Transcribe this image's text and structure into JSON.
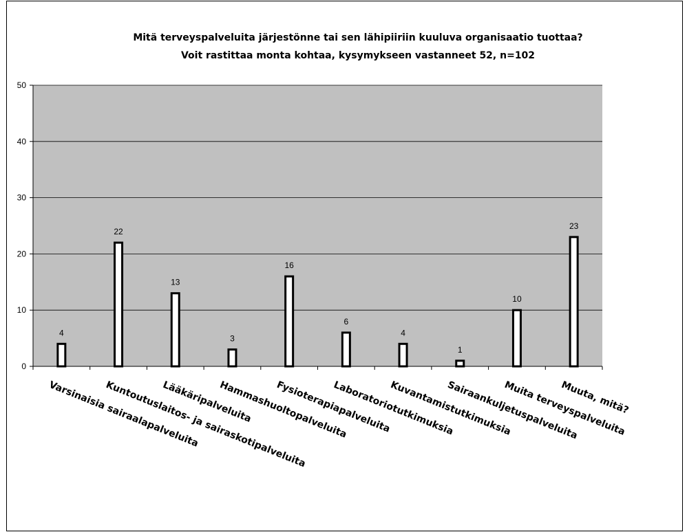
{
  "chart_data": {
    "type": "bar",
    "title": [
      "Mitä terveyspalveluita järjestönne tai sen lähipiiriin kuuluva organisaatio tuottaa?",
      "Voit rastittaa monta kohtaa, kysymykseen vastanneet 52, n=102"
    ],
    "xlabel": "",
    "ylabel": "",
    "ylim": [
      0,
      50
    ],
    "yticks": [
      0,
      10,
      20,
      30,
      40,
      50
    ],
    "grid": true,
    "legend": "none",
    "categories": [
      "Varsinaisia sairaalapalveluita",
      "Kuntoutuslaitos- ja sairaskotipalveluita",
      "Lääkäripalveluita",
      "Hammashuoltopalveluita",
      "Fysioterapiapalveluita",
      "Laboratoriotutkimuksia",
      "Kuvantamistutkimuksia",
      "Sairaankuljetuspalveluita",
      "Muita terveyspalveluita",
      "Muuta, mitä?"
    ],
    "values": [
      4,
      22,
      13,
      3,
      16,
      6,
      4,
      1,
      10,
      23
    ],
    "colors": {
      "plot_background": "#c0c0c0",
      "bar_fill": "#ffffff",
      "bar_outline": "#000000"
    }
  }
}
